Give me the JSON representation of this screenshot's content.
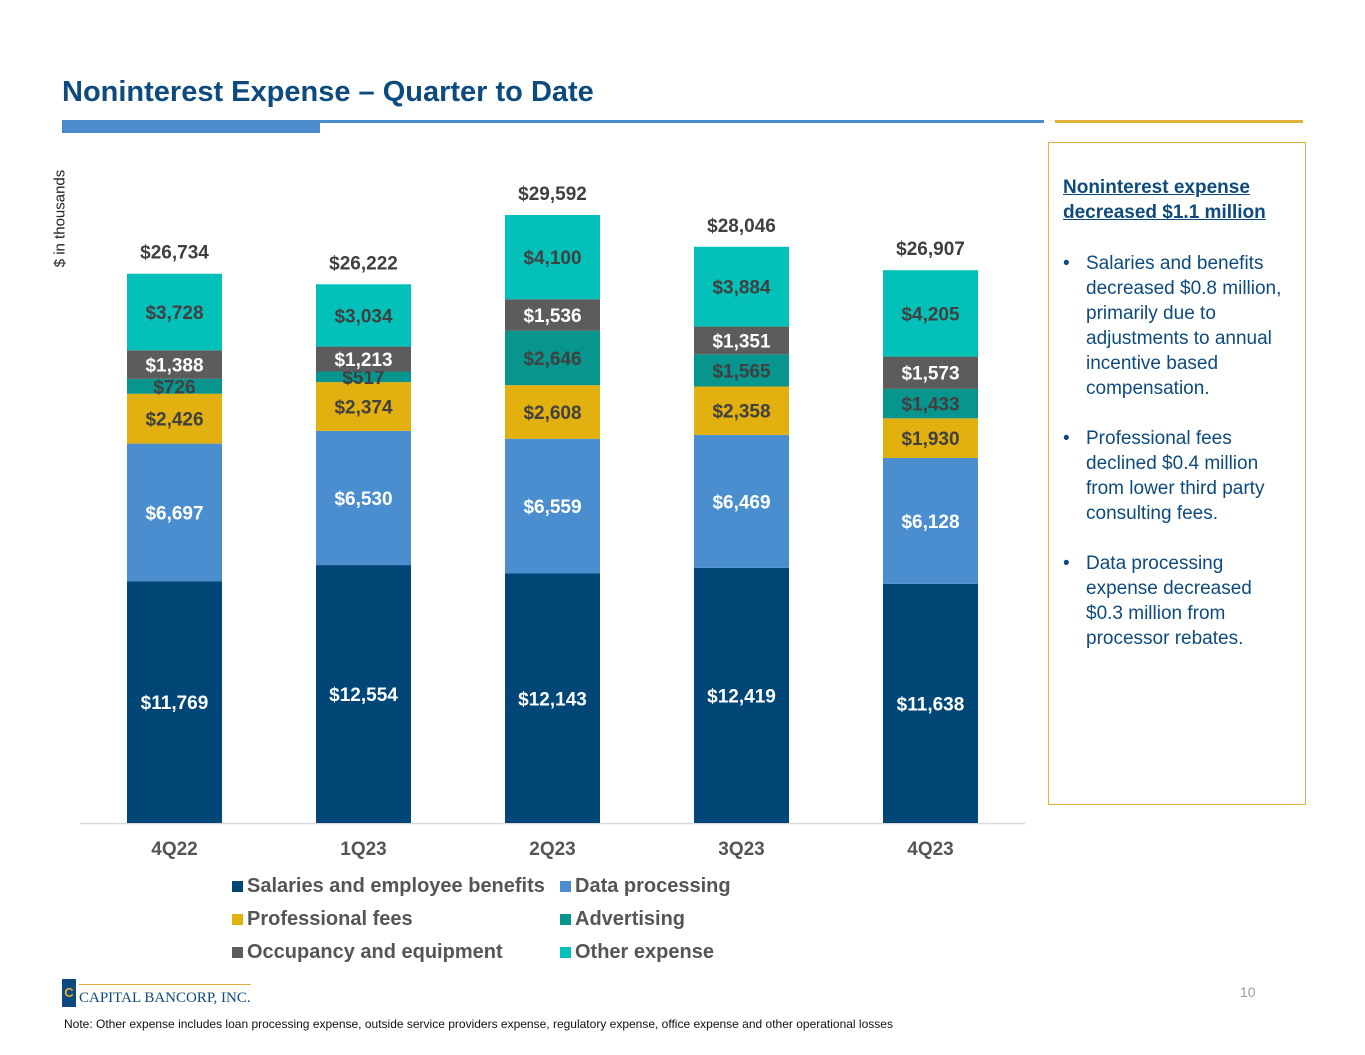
{
  "title": "Noninterest Expense – Quarter to Date",
  "colors": {
    "title": "#0d4a7e",
    "rule_blue": "#4a8cca",
    "rule_gold": "#e0b23a",
    "axis": "#d9d9d9",
    "total_label": "#404040",
    "tick_label": "#555555"
  },
  "chart_data": {
    "type": "bar",
    "stacked": true,
    "title": "",
    "xlabel": "",
    "ylabel": "$ in thousands",
    "ylim": [
      0,
      33000
    ],
    "grid": false,
    "legend_position": "bottom",
    "categories": [
      "4Q22",
      "1Q23",
      "2Q23",
      "3Q23",
      "4Q23"
    ],
    "totals": [
      26734,
      26222,
      29592,
      28046,
      26907
    ],
    "total_labels": [
      "$26,734",
      "$26,222",
      "$29,592",
      "$28,046",
      "$26,907"
    ],
    "series": [
      {
        "name": "Salaries and employee benefits",
        "color": "#004677",
        "label_color": "#ffffff",
        "values": [
          11769,
          12554,
          12143,
          12419,
          11638
        ],
        "labels": [
          "$11,769",
          "$12,554",
          "$12,143",
          "$12,419",
          "$11,638"
        ]
      },
      {
        "name": "Data processing",
        "color": "#4a8ed0",
        "label_color": "#ffffff",
        "values": [
          6697,
          6530,
          6559,
          6469,
          6128
        ],
        "labels": [
          "$6,697",
          "$6,530",
          "$6,559",
          "$6,469",
          "$6,128"
        ]
      },
      {
        "name": "Professional fees",
        "color": "#e2b00f",
        "label_color": "#404040",
        "values": [
          2426,
          2374,
          2608,
          2358,
          1930
        ],
        "labels": [
          "$2,426",
          "$2,374",
          "$2,608",
          "$2,358",
          "$1,930"
        ]
      },
      {
        "name": "Advertising",
        "color": "#08958d",
        "label_color": "#404040",
        "values": [
          726,
          517,
          2646,
          1565,
          1433
        ],
        "labels": [
          "$726",
          "$517",
          "$2,646",
          "$1,565",
          "$1,433"
        ]
      },
      {
        "name": "Occupancy and equipment",
        "color": "#5c5c5c",
        "label_color": "#ffffff",
        "values": [
          1388,
          1213,
          1536,
          1351,
          1573
        ],
        "labels": [
          "$1,388",
          "$1,213",
          "$1,536",
          "$1,351",
          "$1,573"
        ]
      },
      {
        "name": "Other expense",
        "color": "#03c1b8",
        "label_color": "#404040",
        "values": [
          3728,
          3034,
          4100,
          3884,
          4205
        ],
        "labels": [
          "$3,728",
          "$3,034",
          "$4,100",
          "$3,884",
          "$4,205"
        ]
      }
    ]
  },
  "callout": {
    "heading": "Noninterest expense decreased $1.1 million",
    "bullet_char": "•",
    "bullets": [
      "Salaries and benefits decreased $0.8 million, primarily due to adjustments to annual incentive based compensation.",
      "Professional fees declined $0.4 million from lower third party consulting fees.",
      "Data processing expense decreased $0.3 million from processor rebates."
    ]
  },
  "logo": {
    "mark": "C",
    "text": "CAPITAL BANCORP, INC."
  },
  "page_number": "10",
  "footnote": "Note: Other expense includes loan processing expense, outside service providers expense, regulatory expense, office expense and other operational losses"
}
